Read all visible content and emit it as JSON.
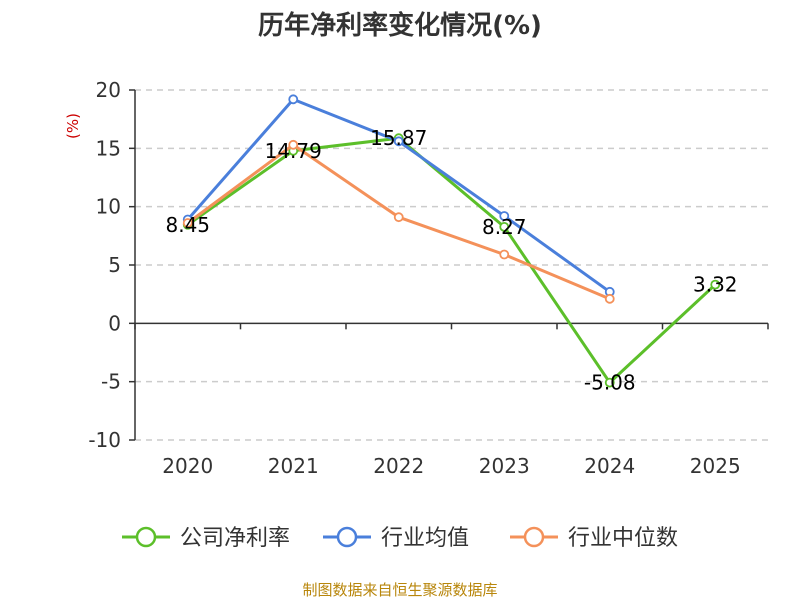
{
  "chart_data": {
    "type": "line",
    "title": "历年净利率变化情况(%)",
    "ylabel": "(%)",
    "xlabel": "",
    "categories": [
      "2020",
      "2021",
      "2022",
      "2023",
      "2024",
      "2025"
    ],
    "ylim": [
      -10,
      20
    ],
    "yticks": [
      "20",
      "15",
      "10",
      "5",
      "0",
      "-5",
      "-10"
    ],
    "grid": true,
    "legend_position": "bottom",
    "series": [
      {
        "name": "公司净利率",
        "color": "#5cbf2a",
        "values": [
          8.45,
          14.79,
          15.87,
          8.27,
          -5.08,
          3.32
        ],
        "labels": [
          "8.45",
          "14.79",
          "15.87",
          "8.27",
          "-5.08",
          "3.32"
        ]
      },
      {
        "name": "行业均值",
        "color": "#4a7fdb",
        "values": [
          8.9,
          19.2,
          15.6,
          9.2,
          2.7,
          null
        ]
      },
      {
        "name": "行业中位数",
        "color": "#f4915a",
        "values": [
          8.6,
          15.3,
          9.1,
          5.9,
          2.1,
          null
        ]
      }
    ],
    "source": "制图数据来自恒生聚源数据库"
  }
}
